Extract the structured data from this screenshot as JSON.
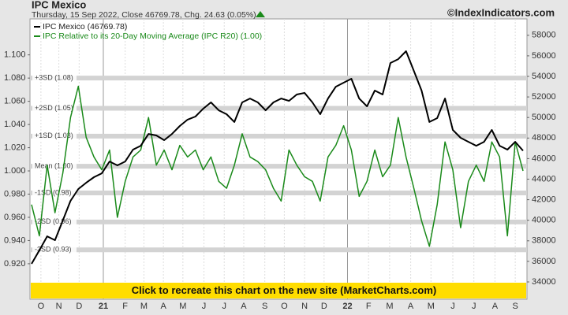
{
  "chart_data": {
    "type": "line",
    "title": "IPC Mexico",
    "subtitle": "Thursday, 15 Sep 2022, Close 46769.78, Chg. 24.63 (0.05%)",
    "source": "©IndexIndicators.com",
    "banner": "Click to recreate this chart on the new site (MarketCharts.com)",
    "xlim": [
      0,
      63
    ],
    "xticks": [
      {
        "value": 1.2,
        "label": "O"
      },
      {
        "value": 3.5,
        "label": "N"
      },
      {
        "value": 6.1,
        "label": "D"
      },
      {
        "value": 9.2,
        "label": "21"
      },
      {
        "value": 12.0,
        "label": "F"
      },
      {
        "value": 14.4,
        "label": "M"
      },
      {
        "value": 16.9,
        "label": "A"
      },
      {
        "value": 19.4,
        "label": "M"
      },
      {
        "value": 22.1,
        "label": "J"
      },
      {
        "value": 24.7,
        "label": "J"
      },
      {
        "value": 27.2,
        "label": "A"
      },
      {
        "value": 29.9,
        "label": "S"
      },
      {
        "value": 32.4,
        "label": "O"
      },
      {
        "value": 35.0,
        "label": "N"
      },
      {
        "value": 37.5,
        "label": "D"
      },
      {
        "value": 40.5,
        "label": "22"
      },
      {
        "value": 43.2,
        "label": "F"
      },
      {
        "value": 45.9,
        "label": "M"
      },
      {
        "value": 48.6,
        "label": "A"
      },
      {
        "value": 51.2,
        "label": "M"
      },
      {
        "value": 54.0,
        "label": "J"
      },
      {
        "value": 56.7,
        "label": "J"
      },
      {
        "value": 59.4,
        "label": "A"
      },
      {
        "value": 62.0,
        "label": "S"
      }
    ],
    "year_ticks": [
      "21",
      "22"
    ],
    "ylim": [
      0.8894,
      1.131
    ],
    "yticks": [
      {
        "value": 0.92,
        "label": "0.920"
      },
      {
        "value": 0.94,
        "label": "0.940"
      },
      {
        "value": 0.96,
        "label": "0.960"
      },
      {
        "value": 0.98,
        "label": "0.980"
      },
      {
        "value": 1.0,
        "label": "1.000"
      },
      {
        "value": 1.02,
        "label": "1.020"
      },
      {
        "value": 1.04,
        "label": "1.040"
      },
      {
        "value": 1.06,
        "label": "1.060"
      },
      {
        "value": 1.08,
        "label": "1.080"
      },
      {
        "value": 1.1,
        "label": "1.100"
      }
    ],
    "y2lim": [
      32314,
      59594
    ],
    "y2ticks": [
      34000,
      36000,
      38000,
      40000,
      42000,
      44000,
      46000,
      48000,
      50000,
      52000,
      54000,
      56000,
      58000
    ],
    "bands": [
      {
        "value": 1.08,
        "label": "+3SD (1.08)"
      },
      {
        "value": 1.054,
        "label": "+2SD (1.05)"
      },
      {
        "value": 1.03,
        "label": "+1SD (1.03)"
      },
      {
        "value": 1.004,
        "label": "Mean (1.00)"
      },
      {
        "value": 0.981,
        "label": "-1SD (0.98)"
      },
      {
        "value": 0.956,
        "label": "-2SD (0.96)"
      },
      {
        "value": 0.932,
        "label": "-3SD (0.93)"
      }
    ],
    "series": [
      {
        "name": "IPC Mexico (46769.78)",
        "color": "#000000",
        "axis": "y2",
        "values": [
          35760,
          37070,
          38440,
          38060,
          39980,
          41890,
          43040,
          43650,
          44190,
          44570,
          45720,
          45340,
          45720,
          46870,
          47250,
          48400,
          48250,
          47790,
          48400,
          49170,
          49790,
          50090,
          50860,
          51470,
          50700,
          50320,
          49560,
          51470,
          51850,
          51470,
          50700,
          51470,
          51850,
          51620,
          52240,
          52390,
          51470,
          50320,
          51850,
          53000,
          53390,
          53770,
          51850,
          51090,
          52620,
          52240,
          55300,
          55680,
          56450,
          54540,
          52620,
          49560,
          49940,
          51850,
          48790,
          48020,
          47630,
          47250,
          47630,
          48790,
          47250,
          46870,
          47630,
          46769.78
        ]
      },
      {
        "name": "IPC Relative to its 20-Day Moving Average (IPC R20) (1.00)",
        "color": "#1a8a1a",
        "values": [
          0.971,
          0.944,
          1.005,
          0.964,
          0.998,
          1.046,
          1.073,
          1.029,
          1.012,
          1.001,
          1.018,
          0.96,
          0.991,
          1.012,
          1.018,
          1.046,
          1.005,
          1.018,
          1.001,
          1.022,
          1.012,
          1.018,
          1.001,
          1.012,
          0.991,
          0.985,
          1.005,
          1.032,
          1.012,
          1.008,
          1.001,
          0.985,
          0.974,
          1.018,
          1.005,
          0.995,
          0.991,
          0.974,
          1.012,
          1.022,
          1.039,
          1.018,
          0.978,
          0.991,
          1.018,
          0.995,
          1.005,
          1.046,
          1.012,
          0.985,
          0.957,
          0.935,
          0.971,
          1.025,
          1.001,
          0.951,
          0.991,
          1.005,
          0.991,
          1.025,
          1.012,
          0.944,
          1.025,
          1.0
        ]
      }
    ]
  }
}
